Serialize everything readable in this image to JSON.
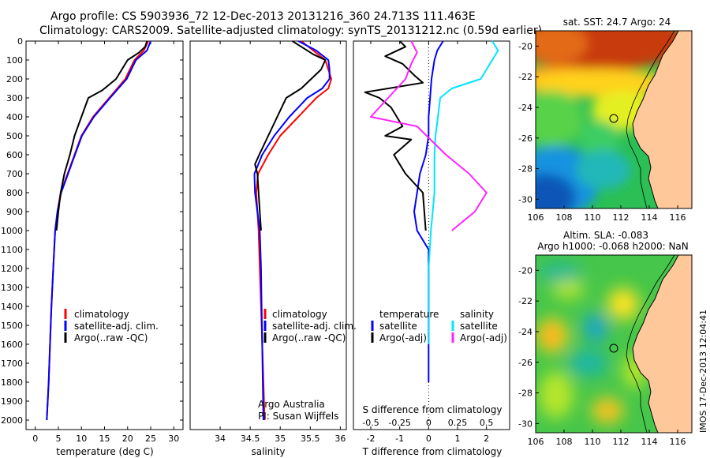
{
  "header": {
    "line1": "Argo profile: CS 5903936_72 12-Dec-2013 20131216_360 24.713S 111.463E",
    "line2": "Climatology: CARS2009. Satellite-adjusted climatology: synTS_20131212.nc (0.59d earlier)"
  },
  "side_stamp": "IMOS 17-Dec-2013 12:04:41",
  "colors": {
    "climatology": "#ff0000",
    "satellite": "#0000ff",
    "argo": "#000000",
    "t_sat": "#00e5ff",
    "s_argo": "#ff22ff",
    "land": "#ffc89a"
  },
  "chart_data": [
    {
      "type": "line",
      "panel": "temperature",
      "xlabel": "temperature (deg C)",
      "ylabel": "",
      "xlim": [
        -2,
        32
      ],
      "ylim": [
        2050,
        0
      ],
      "y_inverted": true,
      "xticks": [
        0,
        5,
        10,
        15,
        20,
        25,
        30
      ],
      "yticks": [
        0,
        100,
        200,
        300,
        400,
        500,
        600,
        700,
        800,
        900,
        1000,
        1100,
        1200,
        1300,
        1400,
        1500,
        1600,
        1700,
        1800,
        1900,
        2000
      ],
      "legend": [
        "climatology",
        "satellite-adj. clim.",
        "Argo(..raw -QC)"
      ],
      "series": [
        {
          "name": "climatology",
          "points": [
            [
              24.5,
              0
            ],
            [
              23.5,
              50
            ],
            [
              21.5,
              100
            ],
            [
              19.5,
              200
            ],
            [
              16,
              300
            ],
            [
              12.5,
              400
            ],
            [
              10,
              500
            ],
            [
              8.5,
              600
            ],
            [
              7,
              700
            ],
            [
              5.5,
              800
            ],
            [
              4.8,
              900
            ],
            [
              4.3,
              1000
            ],
            [
              3.9,
              1200
            ],
            [
              3.5,
              1400
            ],
            [
              3.2,
              1600
            ],
            [
              2.9,
              1800
            ],
            [
              2.5,
              2000
            ]
          ]
        },
        {
          "name": "satellite-adj. clim.",
          "points": [
            [
              25,
              0
            ],
            [
              24.2,
              50
            ],
            [
              21.8,
              100
            ],
            [
              19.8,
              200
            ],
            [
              16.2,
              300
            ],
            [
              12.7,
              400
            ],
            [
              10.1,
              500
            ],
            [
              8.6,
              600
            ],
            [
              7.1,
              700
            ],
            [
              5.6,
              800
            ],
            [
              4.8,
              900
            ],
            [
              4.3,
              1000
            ],
            [
              3.9,
              1200
            ],
            [
              3.5,
              1400
            ],
            [
              3.2,
              1600
            ],
            [
              2.9,
              1800
            ],
            [
              2.5,
              2000
            ]
          ]
        },
        {
          "name": "Argo(..raw -QC)",
          "points": [
            [
              24.2,
              0
            ],
            [
              23.8,
              30
            ],
            [
              22.5,
              60
            ],
            [
              20,
              100
            ],
            [
              17.5,
              200
            ],
            [
              14.5,
              260
            ],
            [
              11.5,
              300
            ],
            [
              10,
              400
            ],
            [
              8.5,
              500
            ],
            [
              7.5,
              600
            ],
            [
              6.3,
              700
            ],
            [
              5.5,
              800
            ],
            [
              5,
              900
            ],
            [
              4.6,
              1000
            ]
          ]
        }
      ]
    },
    {
      "type": "line",
      "panel": "salinity",
      "xlabel": "salinity",
      "xlim": [
        33.5,
        36.1
      ],
      "ylim": [
        2050,
        0
      ],
      "y_inverted": true,
      "xticks": [
        34,
        34.5,
        35,
        35.5,
        36
      ],
      "legend": [
        "climatology",
        "satellite-adj. clim.",
        "Argo(..raw -QC)"
      ],
      "annotations": [
        "Argo Australia",
        "PI: Susan Wijffels"
      ],
      "series": [
        {
          "name": "climatology",
          "points": [
            [
              35.35,
              0
            ],
            [
              35.55,
              50
            ],
            [
              35.75,
              100
            ],
            [
              35.85,
              200
            ],
            [
              35.8,
              250
            ],
            [
              35.6,
              300
            ],
            [
              35.3,
              400
            ],
            [
              35,
              500
            ],
            [
              34.8,
              600
            ],
            [
              34.63,
              700
            ],
            [
              34.6,
              800
            ],
            [
              34.62,
              900
            ],
            [
              34.64,
              1000
            ],
            [
              34.66,
              1200
            ],
            [
              34.68,
              1400
            ],
            [
              34.7,
              1600
            ],
            [
              34.72,
              1800
            ],
            [
              34.74,
              2000
            ]
          ]
        },
        {
          "name": "satellite-adj. clim.",
          "points": [
            [
              35.3,
              0
            ],
            [
              35.6,
              50
            ],
            [
              35.8,
              100
            ],
            [
              35.82,
              150
            ],
            [
              35.82,
              200
            ],
            [
              35.7,
              250
            ],
            [
              35.45,
              300
            ],
            [
              35.15,
              400
            ],
            [
              34.9,
              500
            ],
            [
              34.7,
              600
            ],
            [
              34.57,
              700
            ],
            [
              34.58,
              800
            ],
            [
              34.62,
              900
            ],
            [
              34.66,
              1000
            ],
            [
              34.68,
              1200
            ],
            [
              34.69,
              1400
            ],
            [
              34.7,
              1600
            ],
            [
              34.71,
              1800
            ],
            [
              34.72,
              2000
            ]
          ]
        },
        {
          "name": "Argo(..raw -QC)",
          "points": [
            [
              35.2,
              0
            ],
            [
              35.35,
              30
            ],
            [
              35.55,
              70
            ],
            [
              35.75,
              100
            ],
            [
              35.68,
              150
            ],
            [
              35.35,
              250
            ],
            [
              35.1,
              300
            ],
            [
              34.95,
              400
            ],
            [
              34.8,
              500
            ],
            [
              34.65,
              600
            ],
            [
              34.58,
              650
            ],
            [
              34.62,
              700
            ],
            [
              34.64,
              800
            ],
            [
              34.66,
              900
            ],
            [
              34.68,
              1000
            ]
          ]
        }
      ]
    },
    {
      "type": "line",
      "panel": "difference",
      "xlabel": "T difference from climatology",
      "top_xlabel": "S difference from climatology",
      "xlim": [
        -2.6,
        2.8
      ],
      "ylim": [
        2050,
        0
      ],
      "y_inverted": true,
      "xticks": [
        -2,
        -1,
        0,
        1,
        2
      ],
      "top_xticks": [
        "-0.5",
        "-0.25",
        "0",
        "0.25",
        "0.5"
      ],
      "legend_headers": [
        "temperature",
        "salinity"
      ],
      "legend": [
        "satellite",
        "Argo(-adj)",
        "satellite",
        "Argo(-adj)"
      ],
      "series": [
        {
          "name": "satellite",
          "group": "temperature",
          "points": [
            [
              0.5,
              0
            ],
            [
              0.3,
              50
            ],
            [
              0.2,
              100
            ],
            [
              0.1,
              200
            ],
            [
              0.05,
              300
            ],
            [
              0,
              400
            ],
            [
              0,
              500
            ],
            [
              -0.1,
              600
            ],
            [
              -0.3,
              700
            ],
            [
              -0.4,
              800
            ],
            [
              -0.5,
              900
            ],
            [
              -0.4,
              1000
            ],
            [
              0,
              1100
            ],
            [
              0,
              1200
            ],
            [
              0,
              1400
            ],
            [
              0,
              1600
            ],
            [
              0,
              1800
            ]
          ]
        },
        {
          "name": "Argo(-adj)",
          "group": "temperature",
          "points": [
            [
              -1,
              0
            ],
            [
              -0.8,
              30
            ],
            [
              -1.5,
              80
            ],
            [
              -0.9,
              120
            ],
            [
              -0.5,
              180
            ],
            [
              -0.2,
              220
            ],
            [
              -2.2,
              270
            ],
            [
              -1.7,
              300
            ],
            [
              -1.3,
              350
            ],
            [
              -0.9,
              450
            ],
            [
              -1.5,
              500
            ],
            [
              -0.6,
              520
            ],
            [
              -1.2,
              600
            ],
            [
              -0.8,
              700
            ],
            [
              -0.2,
              800
            ],
            [
              -0.1,
              1000
            ]
          ]
        },
        {
          "name": "satellite",
          "group": "salinity",
          "points": [
            [
              0.55,
              0
            ],
            [
              0.6,
              50
            ],
            [
              0.55,
              100
            ],
            [
              0.45,
              200
            ],
            [
              0.2,
              250
            ],
            [
              0.1,
              300
            ],
            [
              0.08,
              400
            ],
            [
              0.06,
              500
            ],
            [
              0.05,
              600
            ],
            [
              0.05,
              700
            ],
            [
              0.05,
              800
            ],
            [
              0.02,
              1000
            ],
            [
              0,
              1200
            ],
            [
              0,
              1400
            ],
            [
              0,
              1600
            ]
          ]
        },
        {
          "name": "Argo(-adj)",
          "group": "salinity",
          "points": [
            [
              -0.15,
              0
            ],
            [
              -0.1,
              60
            ],
            [
              -0.15,
              120
            ],
            [
              -0.2,
              200
            ],
            [
              -0.35,
              300
            ],
            [
              -0.5,
              400
            ],
            [
              -0.1,
              450
            ],
            [
              0.15,
              600
            ],
            [
              0.35,
              700
            ],
            [
              0.5,
              800
            ],
            [
              0.4,
              900
            ],
            [
              0.2,
              1000
            ]
          ]
        }
      ]
    },
    {
      "type": "heatmap",
      "panel": "sst_map",
      "title": "sat. SST: 24.7 Argo: 24",
      "xlim": [
        106,
        117
      ],
      "ylim": [
        -30.6,
        -19
      ],
      "xticks": [
        106,
        108,
        110,
        112,
        114,
        116
      ],
      "yticks": [
        -20,
        -22,
        -24,
        -26,
        -28,
        -30
      ],
      "marker": {
        "lon": 111.463,
        "lat": -24.713
      }
    },
    {
      "type": "heatmap",
      "panel": "sla_map",
      "title_line1": "Altim. SLA: -0.083",
      "title_line2": "Argo h1000: -0.068 h2000: NaN",
      "xlim": [
        106,
        117
      ],
      "ylim": [
        -30.6,
        -19
      ],
      "xticks": [
        106,
        108,
        110,
        112,
        114,
        116
      ],
      "yticks": [
        -20,
        -22,
        -24,
        -26,
        -28,
        -30
      ],
      "marker": {
        "lon": 111.463,
        "lat": -24.713
      }
    }
  ]
}
